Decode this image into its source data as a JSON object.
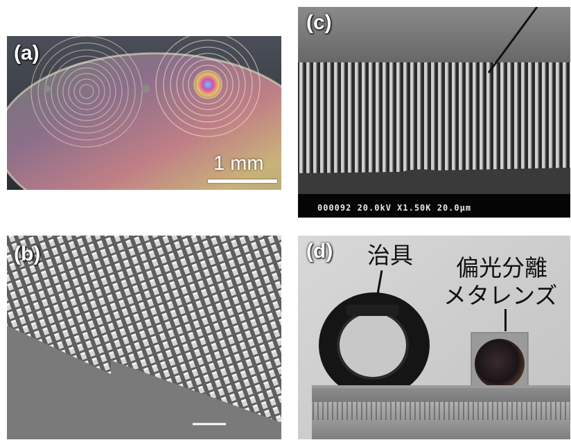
{
  "panels": {
    "a": {
      "label": "(a)",
      "scale_text": "1 mm"
    },
    "b": {
      "label": "(b)"
    },
    "c": {
      "label": "(c)",
      "sem_info": "000092 20.0kV X1.50K 20.0µm"
    },
    "d": {
      "label": "(d)",
      "jig_label": "治具",
      "lens_label_line1": "偏光分離",
      "lens_label_line2": "メタレンズ"
    }
  }
}
